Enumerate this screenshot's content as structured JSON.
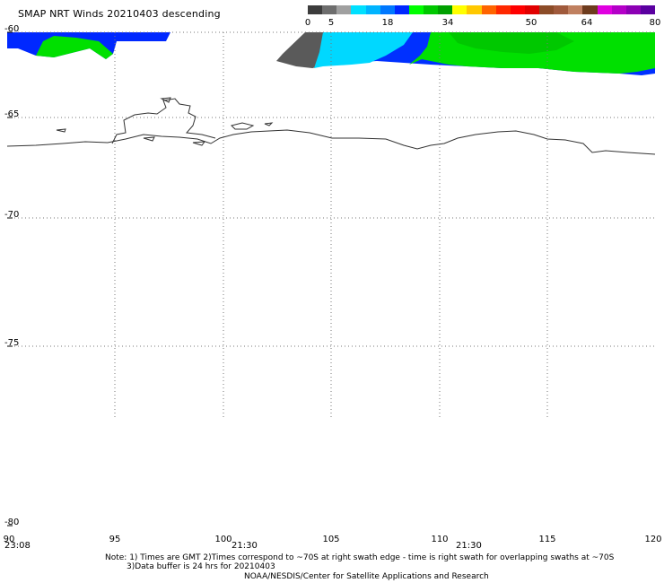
{
  "title": "SMAP NRT Winds  20210403 descending",
  "colorbar": {
    "labels": [
      "0",
      "5",
      "18",
      "34",
      "50",
      "64",
      "80"
    ],
    "segments": [
      "#3c3c3c",
      "#6e6e6e",
      "#a0a0a0",
      "#00e0ff",
      "#00b4ff",
      "#0078ff",
      "#0028ff",
      "#00ff00",
      "#00c800",
      "#00a000",
      "#ffff00",
      "#ffc800",
      "#ff6400",
      "#ff2800",
      "#ff0000",
      "#e10000",
      "#8c4c28",
      "#a05a3c",
      "#c08060",
      "#6e3c1e",
      "#e000e0",
      "#b400c8",
      "#8c00b4",
      "#5a00a0"
    ]
  },
  "lat_labels": [
    "-60",
    "-65",
    "-70",
    "-75",
    "-80"
  ],
  "lon_labels": [
    "90",
    "95",
    "100",
    "105",
    "110",
    "115",
    "120"
  ],
  "time_labels": [
    "23:08",
    "21:30",
    "21:30"
  ],
  "notes": {
    "line1": "Note: 1) Times are GMT 2)Times correspond to ~70S at right swath edge - time is right swath for overlapping swaths at ~70S",
    "line2": "3)Data buffer is 24 hrs for 20210403",
    "line3": "NOAA/NESDIS/Center for Satellite Applications and Research"
  },
  "colors": {
    "blue": "#0028ff",
    "green": "#00e000",
    "cyan": "#00d8ff",
    "gray": "#555555"
  }
}
